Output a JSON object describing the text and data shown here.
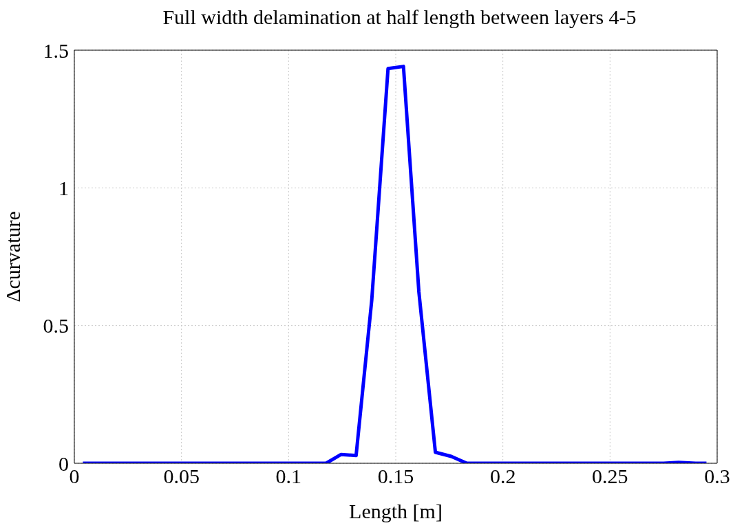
{
  "chart_data": {
    "type": "line",
    "title": "Full width delamination at half length between layers 4-5",
    "xlabel": "Length [m]",
    "ylabel": "Δcurvature",
    "x": [
      0.004,
      0.05,
      0.1,
      0.1175,
      0.1245,
      0.1315,
      0.1388,
      0.1464,
      0.1536,
      0.1608,
      0.1685,
      0.1759,
      0.1832,
      0.25,
      0.275,
      0.282,
      0.29,
      0.295
    ],
    "series": [
      {
        "color": "#0000ff",
        "values": [
          0,
          0,
          0,
          0,
          0.032,
          0.028,
          0.592,
          1.433,
          1.441,
          0.622,
          0.04,
          0.025,
          0,
          0,
          0,
          0.003,
          0,
          0
        ]
      }
    ],
    "xlim": [
      0,
      0.3
    ],
    "xticks": [
      0,
      0.05,
      0.1,
      0.15,
      0.2,
      0.25,
      0.3
    ],
    "ylim": [
      0,
      1.5
    ],
    "yticks": [
      0,
      0.5,
      1,
      1.5
    ],
    "grid": true,
    "legend": false,
    "marker": "none",
    "line_style": "solid"
  }
}
